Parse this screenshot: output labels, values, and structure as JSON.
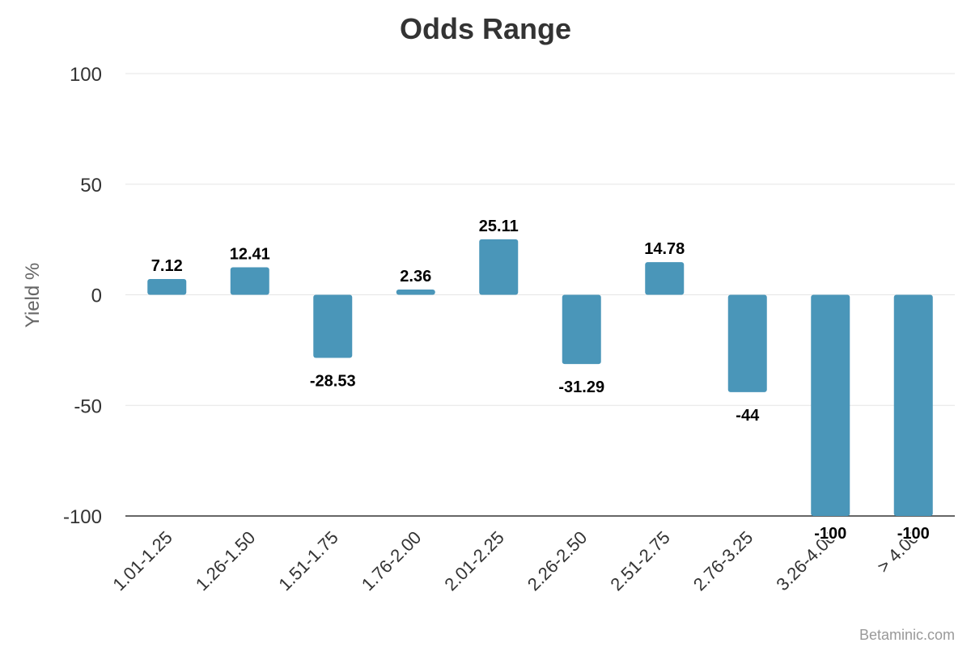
{
  "chart_data": {
    "type": "bar",
    "title": "Odds Range",
    "xlabel": "",
    "ylabel": "Yield %",
    "ylim": [
      -100,
      100
    ],
    "yticks": [
      100,
      50,
      0,
      -50,
      -100
    ],
    "grid": true,
    "categories": [
      "1.01-1.25",
      "1.26-1.50",
      "1.51-1.75",
      "1.76-2.00",
      "2.01-2.25",
      "2.26-2.50",
      "2.51-2.75",
      "2.76-3.25",
      "3.26-4.00",
      "> 4.00"
    ],
    "values": [
      7.12,
      12.41,
      -28.53,
      2.36,
      25.11,
      -31.29,
      14.78,
      -44,
      -100,
      -100
    ],
    "data_labels": [
      "7.12",
      "12.41",
      "-28.53",
      "2.36",
      "25.11",
      "-31.29",
      "14.78",
      "-44",
      "-100",
      "-100"
    ],
    "bar_color": "#4a96b9",
    "credit": "Betaminic.com"
  }
}
